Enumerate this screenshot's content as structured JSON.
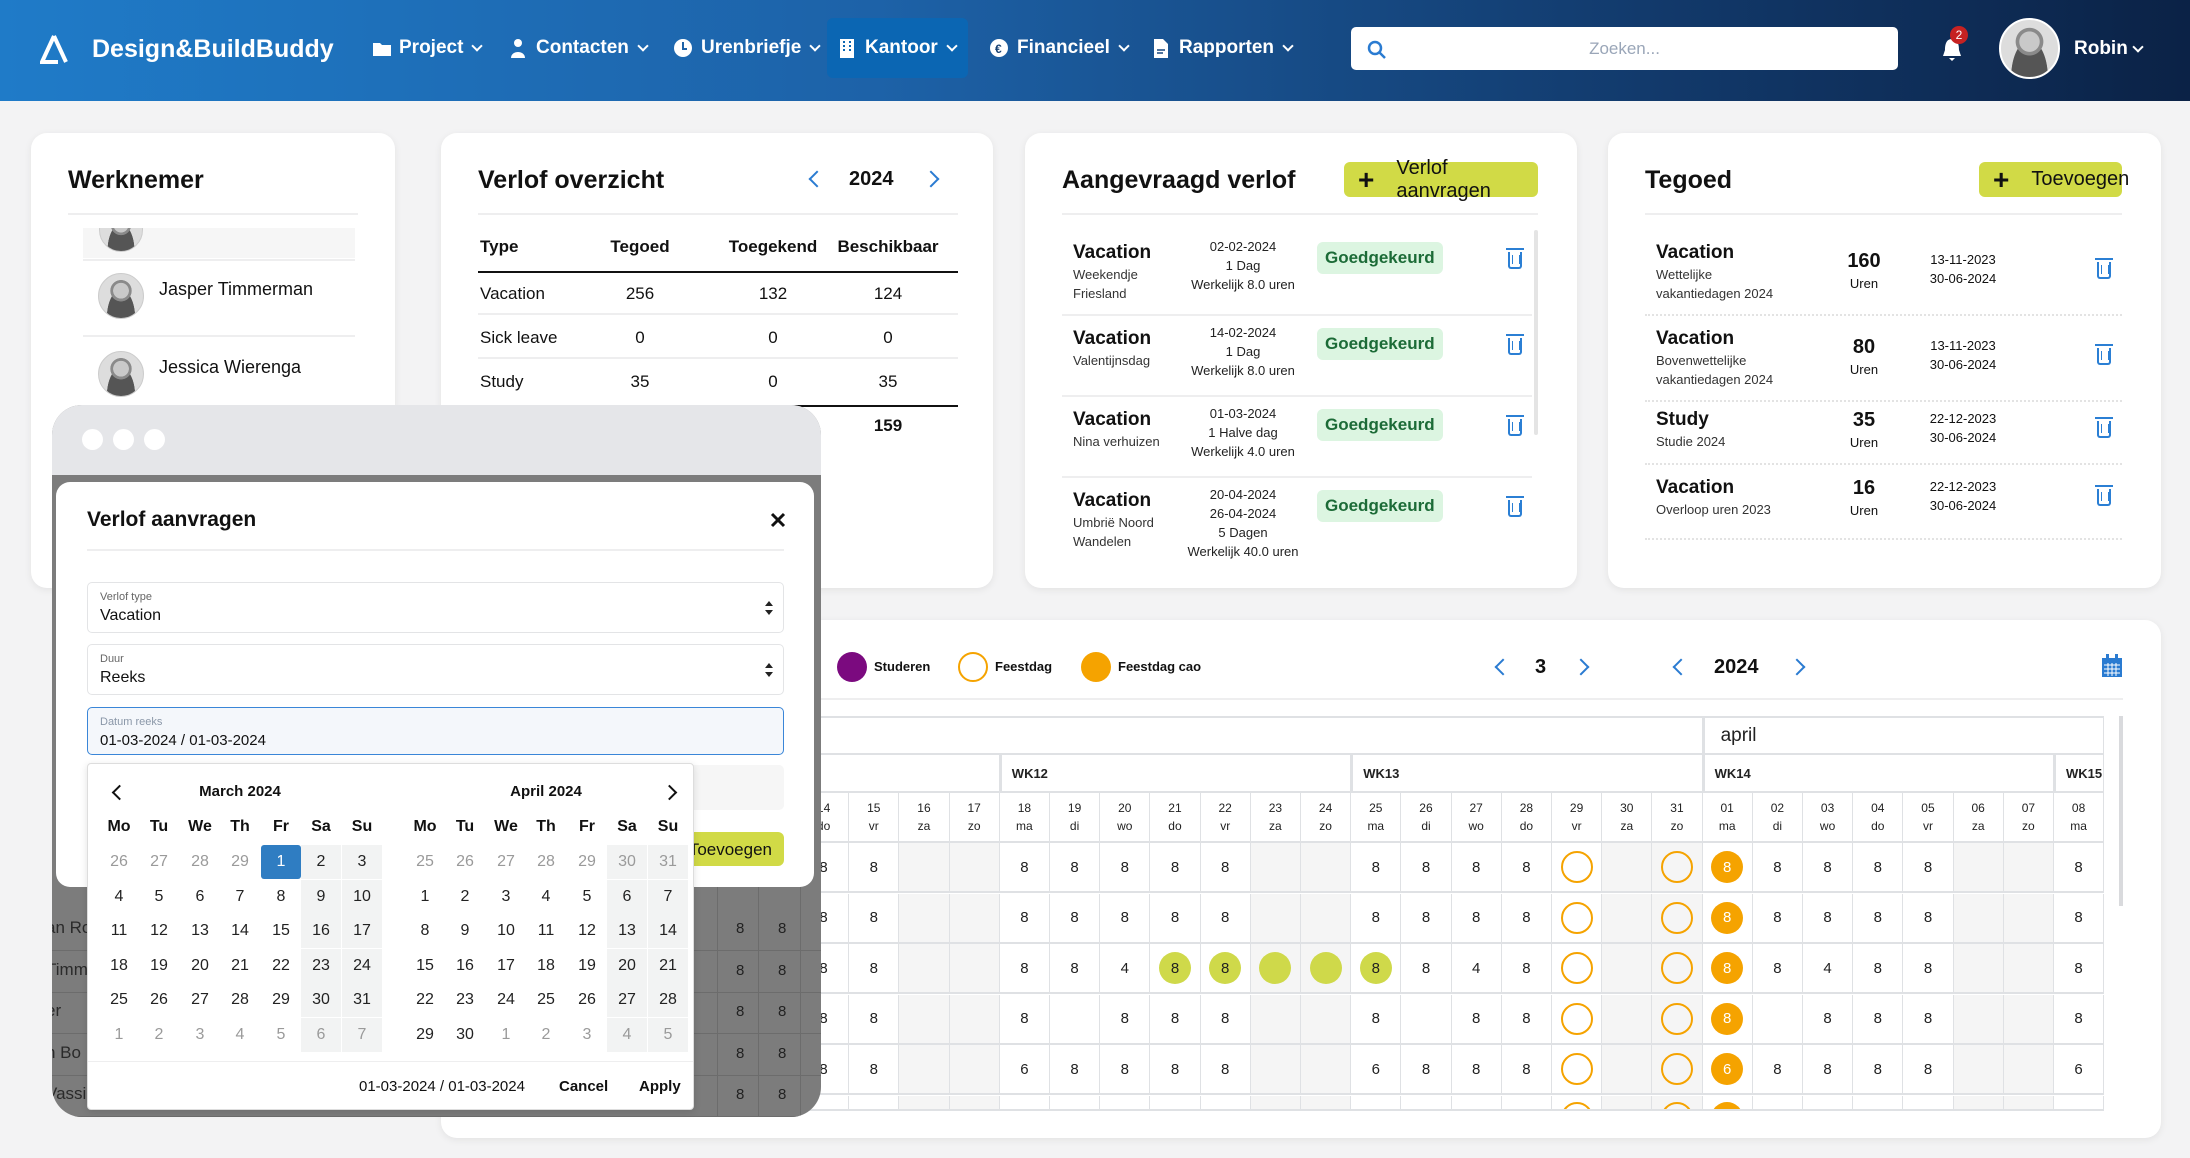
{
  "header": {
    "brand": "Design&BuildBuddy",
    "nav": [
      {
        "label": "Project",
        "icon": "folder-icon",
        "active": false
      },
      {
        "label": "Contacten",
        "icon": "person-icon",
        "active": false
      },
      {
        "label": "Urenbriefje",
        "icon": "clock-icon",
        "active": false
      },
      {
        "label": "Kantoor",
        "icon": "building-icon",
        "active": true
      },
      {
        "label": "Financieel",
        "icon": "euro-icon",
        "active": false
      },
      {
        "label": "Rapporten",
        "icon": "document-icon",
        "active": false
      }
    ],
    "search_placeholder": "Zoeken...",
    "notification_count": "2",
    "user": "Robin"
  },
  "werknemer": {
    "title": "Werknemer",
    "employees": [
      {
        "name": ""
      },
      {
        "name": "Jasper Timmerman"
      },
      {
        "name": "Jessica Wierenga"
      }
    ]
  },
  "overzicht": {
    "title": "Verlof overzicht",
    "year": "2024",
    "columns": [
      "Type",
      "Tegoed",
      "Toegekend",
      "Beschikbaar"
    ],
    "rows": [
      [
        "Vacation",
        "256",
        "132",
        "124"
      ],
      [
        "Sick leave",
        "0",
        "0",
        "0"
      ],
      [
        "Study",
        "35",
        "0",
        "35"
      ]
    ],
    "total": "159"
  },
  "aangevraagd": {
    "title": "Aangevraagd verlof",
    "button": "Verlof aanvragen",
    "items": [
      {
        "type": "Vacation",
        "desc": [
          "Weekendje",
          "Friesland"
        ],
        "details": [
          "02-02-2024",
          "1 Dag",
          "Werkelijk 8.0 uren"
        ],
        "status": "Goedgekeurd"
      },
      {
        "type": "Vacation",
        "desc": [
          "Valentijnsdag"
        ],
        "details": [
          "14-02-2024",
          "1 Dag",
          "Werkelijk 8.0 uren"
        ],
        "status": "Goedgekeurd"
      },
      {
        "type": "Vacation",
        "desc": [
          "Nina verhuizen"
        ],
        "details": [
          "01-03-2024",
          "1 Halve dag",
          "Werkelijk 4.0 uren"
        ],
        "status": "Goedgekeurd"
      },
      {
        "type": "Vacation",
        "desc": [
          "Umbrië Noord",
          "Wandelen"
        ],
        "details": [
          "20-04-2024",
          "26-04-2024",
          "5 Dagen",
          "Werkelijk 40.0 uren"
        ],
        "status": "Goedgekeurd"
      }
    ]
  },
  "tegoed": {
    "title": "Tegoed",
    "button": "Toevoegen",
    "items": [
      {
        "type": "Vacation",
        "desc": [
          "Wettelijke",
          "vakantiedagen 2024"
        ],
        "amount": "160",
        "unit": "Uren",
        "dates": [
          "13-11-2023",
          "30-06-2024"
        ]
      },
      {
        "type": "Vacation",
        "desc": [
          "Bovenwettelijke",
          "vakantiedagen 2024"
        ],
        "amount": "80",
        "unit": "Uren",
        "dates": [
          "13-11-2023",
          "30-06-2024"
        ]
      },
      {
        "type": "Study",
        "desc": [
          "Studie 2024"
        ],
        "amount": "35",
        "unit": "Uren",
        "dates": [
          "22-12-2023",
          "30-06-2024"
        ]
      },
      {
        "type": "Vacation",
        "desc": [
          "Overloop uren 2023"
        ],
        "amount": "16",
        "unit": "Uren",
        "dates": [
          "22-12-2023",
          "30-06-2024"
        ]
      }
    ]
  },
  "planning": {
    "legend": [
      {
        "label": "Studeren",
        "color": "#7b0a7f",
        "style": "filled"
      },
      {
        "label": "Feestdag",
        "color": "#f5a300",
        "style": "outline"
      },
      {
        "label": "Feestdag cao",
        "color": "#f5a300",
        "style": "filled"
      }
    ],
    "period": "3",
    "year": "2024",
    "months": [
      {
        "label": "",
        "span": 18
      },
      {
        "label": "april",
        "span": 8
      }
    ],
    "weeks": [
      {
        "label": "",
        "span": 4
      },
      {
        "label": "WK12",
        "span": 7
      },
      {
        "label": "WK13",
        "span": 7
      },
      {
        "label": "WK14",
        "span": 7
      },
      {
        "label": "WK15",
        "span": 1
      }
    ],
    "days": [
      [
        "14",
        "do"
      ],
      [
        "15",
        "vr"
      ],
      [
        "16",
        "za"
      ],
      [
        "17",
        "zo"
      ],
      [
        "18",
        "ma"
      ],
      [
        "19",
        "di"
      ],
      [
        "20",
        "wo"
      ],
      [
        "21",
        "do"
      ],
      [
        "22",
        "vr"
      ],
      [
        "23",
        "za"
      ],
      [
        "24",
        "zo"
      ],
      [
        "25",
        "ma"
      ],
      [
        "26",
        "di"
      ],
      [
        "27",
        "wo"
      ],
      [
        "28",
        "do"
      ],
      [
        "29",
        "vr"
      ],
      [
        "30",
        "za"
      ],
      [
        "31",
        "zo"
      ],
      [
        "01",
        "ma"
      ],
      [
        "02",
        "di"
      ],
      [
        "03",
        "wo"
      ],
      [
        "04",
        "do"
      ],
      [
        "05",
        "vr"
      ],
      [
        "06",
        "za"
      ],
      [
        "07",
        "zo"
      ],
      [
        "08",
        "ma"
      ]
    ],
    "weekend_days": [
      "za",
      "zo"
    ],
    "rows": [
      [
        "8",
        "8",
        "",
        "",
        "8",
        "8",
        "8",
        "8",
        "8",
        "",
        "",
        "8",
        "8",
        "8",
        "8",
        {
          "v": "",
          "m": "holiday"
        },
        "",
        {
          "v": "",
          "m": "holiday"
        },
        {
          "v": "8",
          "m": "holiday_cao"
        },
        "8",
        "8",
        "8",
        "8",
        "",
        "",
        "8"
      ],
      [
        "8",
        "8",
        "",
        "",
        "8",
        "8",
        "8",
        "8",
        "8",
        "",
        "",
        "8",
        "8",
        "8",
        "8",
        {
          "v": "",
          "m": "holiday"
        },
        "",
        {
          "v": "",
          "m": "holiday"
        },
        {
          "v": "8",
          "m": "holiday_cao"
        },
        "8",
        "8",
        "8",
        "8",
        "",
        "",
        "8"
      ],
      [
        "8",
        "8",
        "",
        "",
        "8",
        "8",
        "4",
        {
          "v": "8",
          "m": "vacation"
        },
        {
          "v": "8",
          "m": "vacation"
        },
        {
          "v": "",
          "m": "vacation"
        },
        {
          "v": "",
          "m": "vacation"
        },
        {
          "v": "8",
          "m": "vacation"
        },
        "8",
        "4",
        "8",
        {
          "v": "",
          "m": "holiday"
        },
        "",
        {
          "v": "",
          "m": "holiday"
        },
        {
          "v": "8",
          "m": "holiday_cao"
        },
        "8",
        "4",
        "8",
        "8",
        "",
        "",
        "8"
      ],
      [
        "8",
        "8",
        "",
        "",
        "8",
        "",
        "8",
        "8",
        "8",
        "",
        "",
        "8",
        "",
        "8",
        "8",
        {
          "v": "",
          "m": "holiday"
        },
        "",
        {
          "v": "",
          "m": "holiday"
        },
        {
          "v": "8",
          "m": "holiday_cao"
        },
        "",
        "8",
        "8",
        "8",
        "",
        "",
        "8"
      ],
      [
        "8",
        "8",
        "",
        "",
        "6",
        "8",
        "8",
        "8",
        "8",
        "",
        "",
        "6",
        "8",
        "8",
        "8",
        {
          "v": "",
          "m": "holiday"
        },
        "",
        {
          "v": "",
          "m": "holiday"
        },
        {
          "v": "6",
          "m": "holiday_cao"
        },
        "8",
        "8",
        "8",
        "8",
        "",
        "",
        "6"
      ],
      [
        "",
        "",
        "",
        "",
        "",
        "",
        "",
        "",
        "",
        "",
        "",
        "",
        "",
        "",
        "",
        {
          "v": "",
          "m": "holiday"
        },
        "",
        {
          "v": "",
          "m": "holiday"
        },
        {
          "v": "",
          "m": "holiday_cao"
        },
        "",
        "",
        "",
        "",
        "",
        "",
        ""
      ]
    ]
  },
  "overlay_bg": {
    "names": [
      "an Ro",
      "Timm",
      "er",
      "n Bo",
      "Vassi"
    ],
    "values": [
      "8",
      "8"
    ]
  },
  "modal": {
    "title": "Verlof aanvragen",
    "fields": [
      {
        "label": "Verlof type",
        "value": "Vacation"
      },
      {
        "label": "Duur",
        "value": "Reeks"
      }
    ],
    "date_label": "Datum reeks",
    "date_value": "01-03-2024 / 01-03-2024",
    "submit": "Toevoegen",
    "picker": {
      "weekdays": [
        "Mo",
        "Tu",
        "We",
        "Th",
        "Fr",
        "Sa",
        "Su"
      ],
      "months": [
        {
          "title": "March 2024",
          "days": [
            "26",
            "27",
            "28",
            "29",
            "1",
            "2",
            "3",
            "4",
            "5",
            "6",
            "7",
            "8",
            "9",
            "10",
            "11",
            "12",
            "13",
            "14",
            "15",
            "16",
            "17",
            "18",
            "19",
            "20",
            "21",
            "22",
            "23",
            "24",
            "25",
            "26",
            "27",
            "28",
            "29",
            "30",
            "31",
            "1",
            "2",
            "3",
            "4",
            "5",
            "6",
            "7"
          ],
          "other_month_before": 4,
          "other_month_after": 7
        },
        {
          "title": "April 2024",
          "days": [
            "25",
            "26",
            "27",
            "28",
            "29",
            "30",
            "31",
            "1",
            "2",
            "3",
            "4",
            "5",
            "6",
            "7",
            "8",
            "9",
            "10",
            "11",
            "12",
            "13",
            "14",
            "15",
            "16",
            "17",
            "18",
            "19",
            "20",
            "21",
            "22",
            "23",
            "24",
            "25",
            "26",
            "27",
            "28",
            "29",
            "30",
            "1",
            "2",
            "3",
            "4",
            "5"
          ],
          "other_month_before": 7,
          "other_month_after": 5
        }
      ],
      "selected": "01-03-2024",
      "range_text": "01-03-2024 / 01-03-2024",
      "cancel": "Cancel",
      "apply": "Apply"
    }
  }
}
